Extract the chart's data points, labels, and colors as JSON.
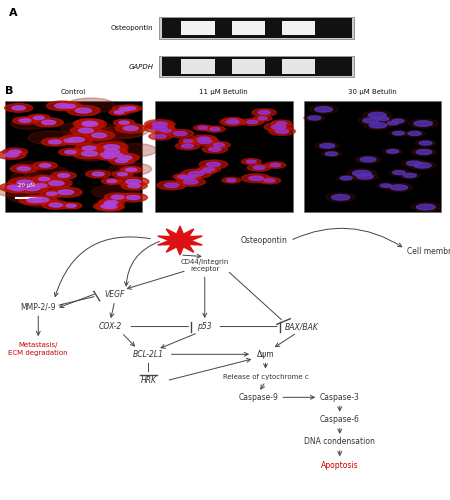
{
  "panel_A_label": "A",
  "panel_B_label": "B",
  "panel_A_gene1": "Osteopontin",
  "panel_A_gene2": "GAPDH",
  "panel_B_titles": [
    "Control",
    "11 μM Betulin",
    "30 μM Betulin"
  ],
  "panel_B_scale": "20 μM",
  "red_color": "#cc0000",
  "arrow_color": "#444444",
  "fs_base": 5.5
}
